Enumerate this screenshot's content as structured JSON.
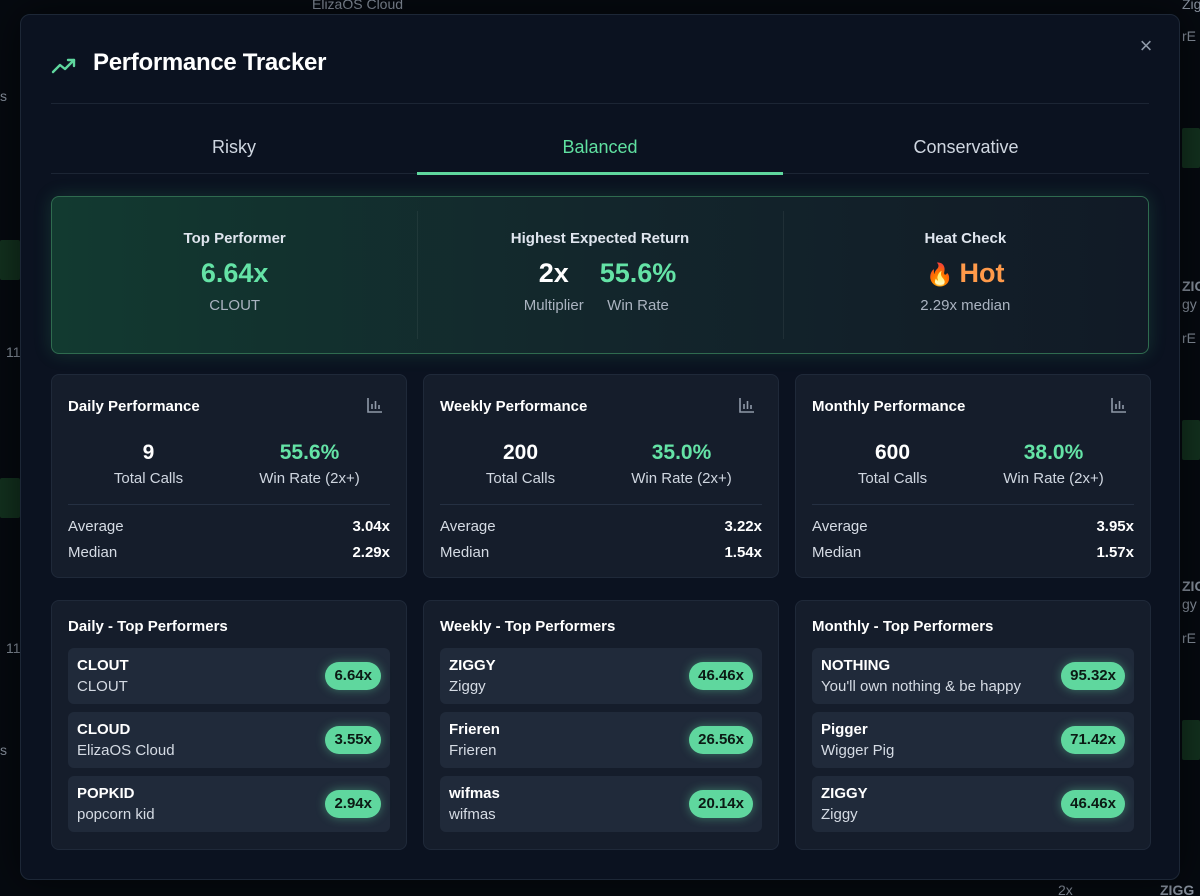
{
  "background": {
    "snippets": [
      "ElizaOS Cloud",
      "s",
      "11",
      "11",
      "s",
      "Zig",
      "rE",
      "ZIGG",
      "gy",
      "rE",
      "ZIGG",
      "gy",
      "rE",
      "2x",
      "ZIGG"
    ]
  },
  "header": {
    "title": "Performance Tracker",
    "icon": "trending-up-icon",
    "close_icon": "×"
  },
  "tabs": [
    {
      "label": "Risky",
      "active": false
    },
    {
      "label": "Balanced",
      "active": true
    },
    {
      "label": "Conservative",
      "active": false
    }
  ],
  "summary": {
    "top_performer": {
      "label": "Top Performer",
      "value": "6.64x",
      "symbol": "CLOUT"
    },
    "expected_return": {
      "label": "Highest Expected Return",
      "multiplier": "2x",
      "multiplier_label": "Multiplier",
      "win_rate": "55.6%",
      "win_rate_label": "Win Rate"
    },
    "heat_check": {
      "label": "Heat Check",
      "emoji": "🔥",
      "status": "Hot",
      "detail": "2.29x median"
    }
  },
  "periods": [
    {
      "title": "Daily Performance",
      "total_calls": "9",
      "total_calls_label": "Total Calls",
      "win_rate": "55.6%",
      "win_rate_label": "Win Rate (2x+)",
      "average_label": "Average",
      "average": "3.04x",
      "median_label": "Median",
      "median": "2.29x"
    },
    {
      "title": "Weekly Performance",
      "total_calls": "200",
      "total_calls_label": "Total Calls",
      "win_rate": "35.0%",
      "win_rate_label": "Win Rate (2x+)",
      "average_label": "Average",
      "average": "3.22x",
      "median_label": "Median",
      "median": "1.54x"
    },
    {
      "title": "Monthly Performance",
      "total_calls": "600",
      "total_calls_label": "Total Calls",
      "win_rate": "38.0%",
      "win_rate_label": "Win Rate (2x+)",
      "average_label": "Average",
      "average": "3.95x",
      "median_label": "Median",
      "median": "1.57x"
    }
  ],
  "top_performers": [
    {
      "title": "Daily - Top Performers",
      "items": [
        {
          "symbol": "CLOUT",
          "name": "CLOUT",
          "multiple": "6.64x"
        },
        {
          "symbol": "CLOUD",
          "name": "ElizaOS Cloud",
          "multiple": "3.55x"
        },
        {
          "symbol": "POPKID",
          "name": "popcorn kid",
          "multiple": "2.94x"
        }
      ]
    },
    {
      "title": "Weekly - Top Performers",
      "items": [
        {
          "symbol": "ZIGGY",
          "name": "Ziggy",
          "multiple": "46.46x"
        },
        {
          "symbol": "Frieren",
          "name": "Frieren",
          "multiple": "26.56x"
        },
        {
          "symbol": "wifmas",
          "name": "wifmas",
          "multiple": "20.14x"
        }
      ]
    },
    {
      "title": "Monthly - Top Performers",
      "items": [
        {
          "symbol": "NOTHING",
          "name": "You'll own nothing & be happy",
          "multiple": "95.32x"
        },
        {
          "symbol": "Pigger",
          "name": "Wigger Pig",
          "multiple": "71.42x"
        },
        {
          "symbol": "ZIGGY",
          "name": "Ziggy",
          "multiple": "46.46x"
        }
      ]
    }
  ],
  "colors": {
    "accent": "#5fd79e",
    "hot": "#ff9a4a",
    "panel": "#151d2b"
  }
}
